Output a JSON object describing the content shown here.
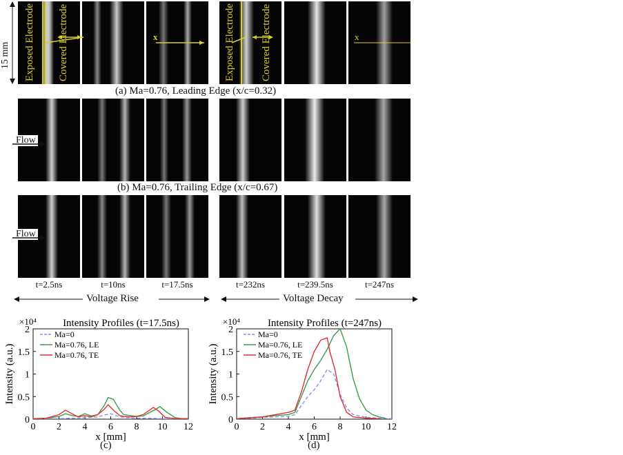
{
  "scale_label": "15 mm",
  "overlay": {
    "exposed_electrode": "Exposed Electrode",
    "covered_electrode": "Covered Electrode",
    "x_marker_a": "x",
    "x_marker_b": "x",
    "flow": "Flow"
  },
  "captions": {
    "a": "(a) Ma=0.76, Leading Edge (x/c=0.32)",
    "b": "(b) Ma=0.76, Trailing Edge (x/c=0.67)",
    "c": "(c)",
    "d": "(d)"
  },
  "time_labels": [
    "t=2.5ns",
    "t=10ns",
    "t=17.5ns",
    "t=232ns",
    "t=239.5ns",
    "t=247ns"
  ],
  "phases": {
    "rise": "Voltage Rise",
    "decay": "Voltage Decay"
  },
  "chart_data": [
    {
      "type": "line",
      "title": "Intensity Profiles (t=17.5ns)",
      "xlabel": "x [mm]",
      "ylabel": "Intensity (a.u.)",
      "y_multiplier": "×10⁴",
      "xlim": [
        0,
        12
      ],
      "ylim": [
        0,
        2
      ],
      "xticks": [
        0,
        2,
        4,
        6,
        8,
        10,
        12
      ],
      "yticks": [
        0,
        0.5,
        1,
        1.5,
        2
      ],
      "series": [
        {
          "name": "Ma=0",
          "color": "#8a8ff0",
          "dash": true,
          "x": [
            0,
            1,
            2,
            3,
            4,
            5,
            5.5,
            6,
            6.5,
            7,
            8,
            9,
            10,
            11,
            12
          ],
          "y": [
            0.01,
            0.01,
            0.01,
            0.02,
            0.03,
            0.05,
            0.09,
            0.12,
            0.07,
            0.04,
            0.02,
            0.02,
            0.01,
            0.01,
            0.01
          ]
        },
        {
          "name": "Ma=0.76, LE",
          "color": "#3c9a4c",
          "dash": false,
          "x": [
            0,
            1,
            2,
            2.5,
            3,
            3.5,
            4,
            4.5,
            5,
            5.5,
            5.8,
            6.2,
            6.7,
            7,
            7.5,
            8,
            8.5,
            9,
            9.5,
            9.8,
            10.3,
            11,
            11.5,
            12
          ],
          "y": [
            0.01,
            0.02,
            0.06,
            0.12,
            0.08,
            0.06,
            0.12,
            0.07,
            0.1,
            0.3,
            0.48,
            0.44,
            0.2,
            0.1,
            0.08,
            0.06,
            0.07,
            0.15,
            0.22,
            0.28,
            0.16,
            0.03,
            0.01,
            0.01
          ]
        },
        {
          "name": "Ma=0.76, TE",
          "color": "#e03030",
          "dash": false,
          "x": [
            0,
            1,
            2,
            2.5,
            3,
            3.5,
            4,
            4.5,
            5,
            5.5,
            5.8,
            6.2,
            6.7,
            7,
            7.5,
            8,
            8.5,
            9,
            9.3,
            9.7,
            10.2,
            11,
            12
          ],
          "y": [
            0.01,
            0.02,
            0.1,
            0.2,
            0.12,
            0.05,
            0.08,
            0.05,
            0.1,
            0.22,
            0.32,
            0.2,
            0.08,
            0.06,
            0.05,
            0.06,
            0.1,
            0.2,
            0.26,
            0.18,
            0.04,
            0.01,
            0.01
          ]
        }
      ]
    },
    {
      "type": "line",
      "title": "Intensity Profiles (t=247ns)",
      "xlabel": "x [mm]",
      "ylabel": "Intensity (a.u.)",
      "y_multiplier": "×10⁴",
      "xlim": [
        0,
        12
      ],
      "ylim": [
        0,
        2
      ],
      "xticks": [
        0,
        2,
        4,
        6,
        8,
        10,
        12
      ],
      "yticks": [
        0,
        0.5,
        1,
        1.5,
        2
      ],
      "series": [
        {
          "name": "Ma=0",
          "color": "#8a8ff0",
          "dash": true,
          "x": [
            0,
            1,
            2,
            3,
            4,
            4.5,
            5,
            5.5,
            6,
            6.5,
            7,
            7.5,
            8,
            8.5,
            9,
            10,
            11,
            12
          ],
          "y": [
            0.01,
            0.02,
            0.04,
            0.05,
            0.06,
            0.1,
            0.3,
            0.5,
            0.65,
            0.85,
            1.1,
            1.0,
            0.55,
            0.25,
            0.1,
            0.04,
            0.02,
            0.01
          ]
        },
        {
          "name": "Ma=0.76, LE",
          "color": "#3c9a4c",
          "dash": false,
          "x": [
            0,
            1,
            2,
            3,
            4,
            4.5,
            5,
            5.5,
            6,
            6.5,
            7,
            7.5,
            8,
            8.5,
            9,
            9.5,
            10,
            10.5,
            11,
            11.5
          ],
          "y": [
            0.01,
            0.03,
            0.05,
            0.08,
            0.1,
            0.15,
            0.5,
            0.85,
            1.1,
            1.3,
            1.55,
            1.85,
            2.0,
            1.6,
            0.9,
            0.45,
            0.2,
            0.1,
            0.05,
            0.02
          ]
        },
        {
          "name": "Ma=0.76, TE",
          "color": "#e03030",
          "dash": false,
          "x": [
            0,
            1,
            2,
            3,
            4,
            4.5,
            5,
            5.5,
            6,
            6.5,
            7,
            7.2,
            7.6,
            8,
            8.5,
            9,
            10,
            11
          ],
          "y": [
            0.01,
            0.03,
            0.05,
            0.1,
            0.15,
            0.2,
            0.6,
            1.1,
            1.5,
            1.75,
            1.8,
            1.5,
            1.1,
            0.5,
            0.15,
            0.05,
            0.02,
            0.01
          ]
        }
      ]
    }
  ]
}
